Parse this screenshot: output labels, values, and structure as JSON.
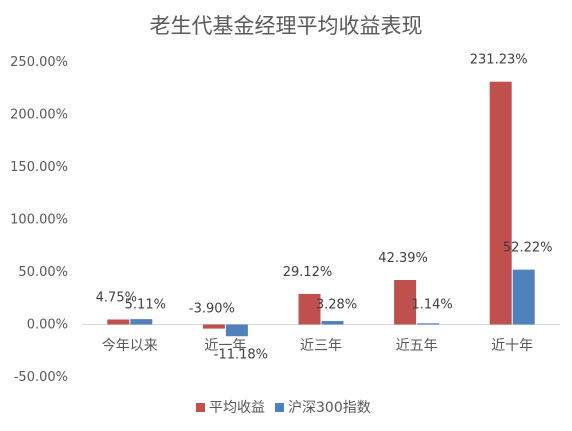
{
  "chart_data": {
    "type": "bar",
    "title": "老生代基金经理平均收益表现",
    "categories": [
      "今年以来",
      "近一年",
      "近三年",
      "近五年",
      "近十年"
    ],
    "series": [
      {
        "name": "平均收益",
        "color": "#c0504d",
        "values": [
          4.75,
          -3.9,
          29.12,
          42.39,
          231.23
        ],
        "labels": [
          "4.75%",
          "-3.90%",
          "29.12%",
          "42.39%",
          "231.23%"
        ]
      },
      {
        "name": "沪深300指数",
        "color": "#4f81bd",
        "values": [
          5.11,
          -11.18,
          3.28,
          1.14,
          52.22
        ],
        "labels": [
          "5.11%",
          "-11.18%",
          "3.28%",
          "1.14%",
          "52.22%"
        ]
      }
    ],
    "ylim": [
      -50,
      250
    ],
    "yticks": [
      -50,
      0,
      50,
      100,
      150,
      200,
      250
    ],
    "ytick_labels": [
      "-50.00%",
      "0.00%",
      "50.00%",
      "100.00%",
      "150.00%",
      "200.00%",
      "250.00%"
    ],
    "grid": false,
    "legend_position": "bottom-center"
  }
}
